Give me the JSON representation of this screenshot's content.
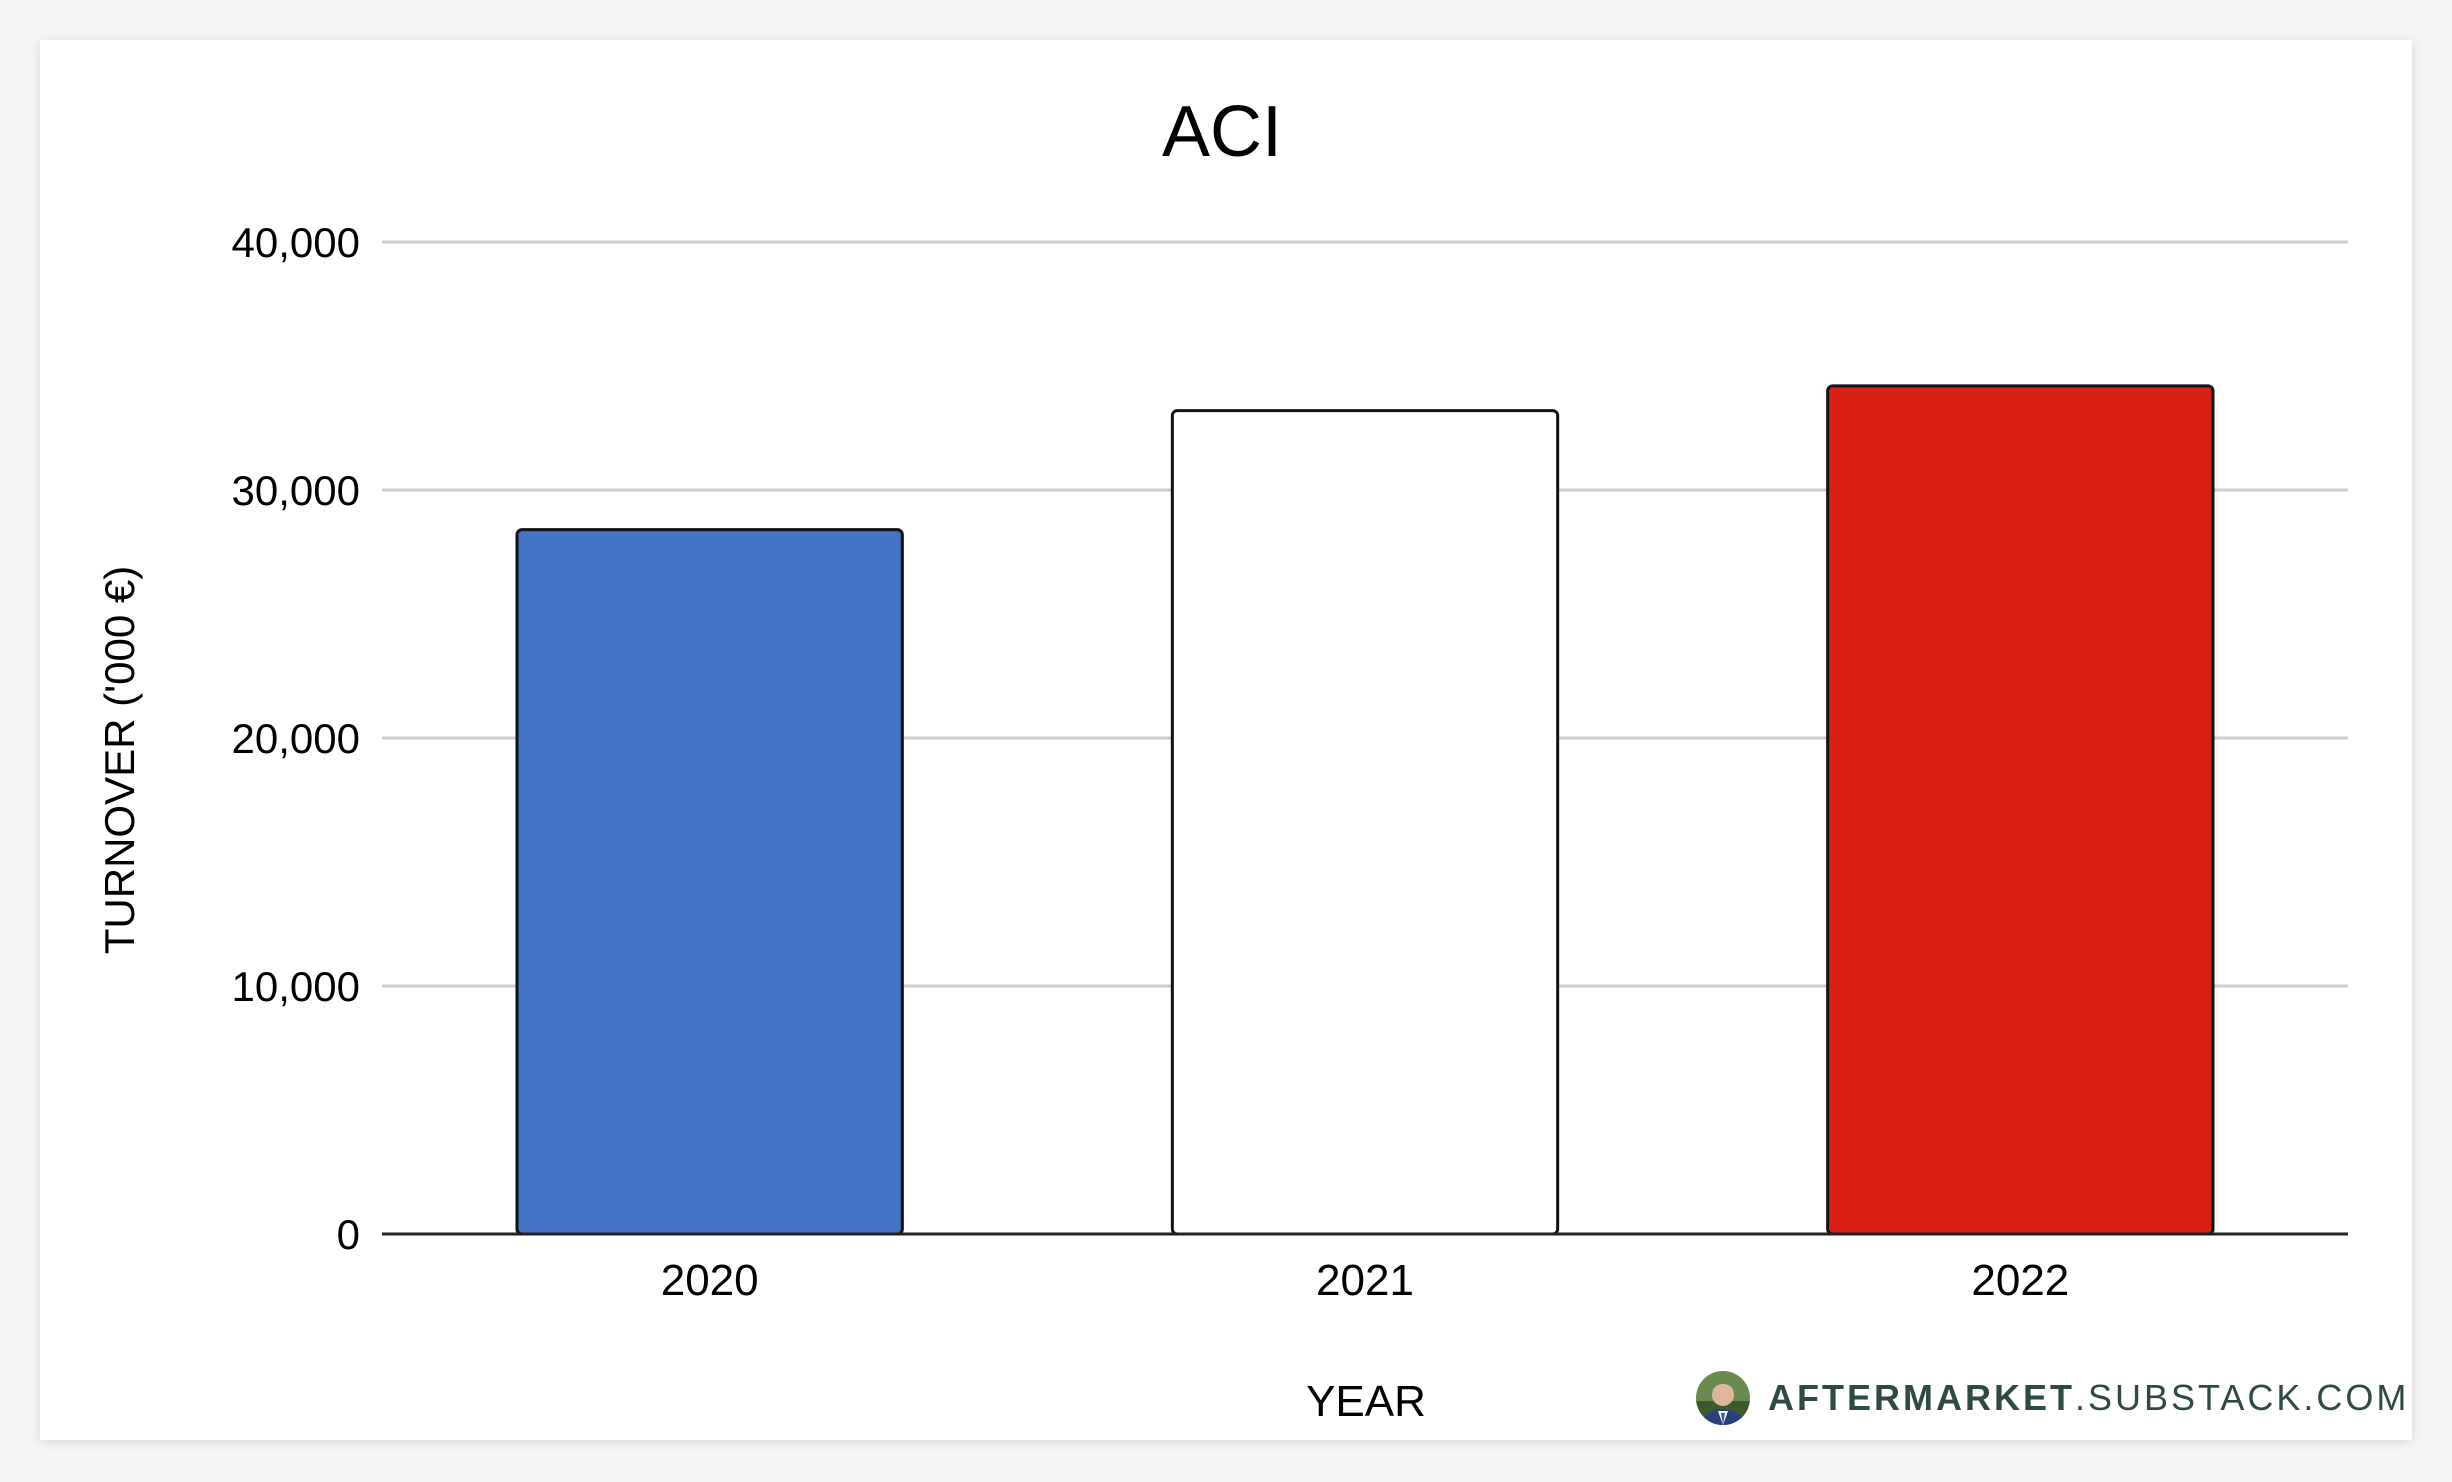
{
  "chart_data": {
    "type": "bar",
    "title": "ACI",
    "xlabel": "YEAR",
    "ylabel": "TURNOVER ('000 €)",
    "categories": [
      "2020",
      "2021",
      "2022"
    ],
    "values": [
      28400,
      33200,
      34200
    ],
    "bar_colors": [
      "#4472c4",
      "#ffffff",
      "#da1f15"
    ],
    "ylim": [
      0,
      40000
    ],
    "yticks": [
      0,
      10000,
      20000,
      30000,
      40000
    ],
    "ytick_labels": [
      "0",
      "10,000",
      "20,000",
      "30,000",
      "40,000"
    ],
    "grid": true,
    "legend": "none"
  },
  "branding": {
    "name_bold": "AFTERMARKET",
    "name_rest": ".SUBSTACK.COM",
    "avatar_icon": "author-portrait-icon"
  },
  "colors": {
    "grid": "#cccccc",
    "axis": "#222222",
    "bar_outline": "#111111",
    "brand_text": "#2f4a44"
  }
}
